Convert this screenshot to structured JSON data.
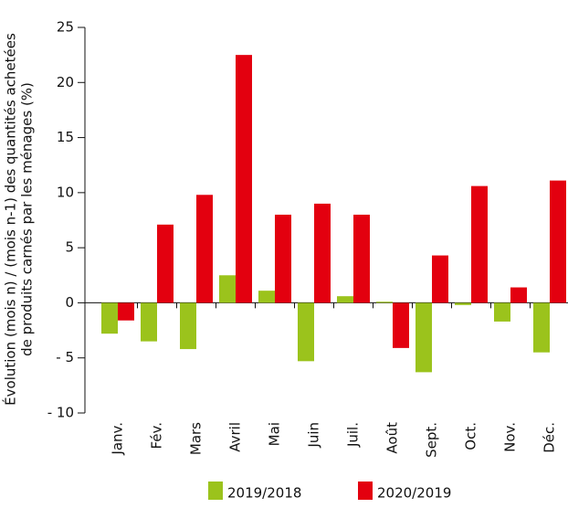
{
  "chart_data": {
    "type": "bar",
    "ylabel": [
      "Évolution (mois n) / (mois n-1) des quantités achetées",
      "de produits carnés par les ménages (%)"
    ],
    "categories": [
      "Janv.",
      "Fév.",
      "Mars",
      "Avril",
      "Mai",
      "Juin",
      "Juil.",
      "Août",
      "Sept.",
      "Oct.",
      "Nov.",
      "Déc."
    ],
    "series": [
      {
        "name": "2019/2018",
        "color": "#9bc31c",
        "values": [
          -2.8,
          -3.5,
          -4.2,
          2.5,
          1.1,
          -5.3,
          0.6,
          0.1,
          -6.3,
          -0.2,
          -1.7,
          -4.5
        ]
      },
      {
        "name": "2020/2019",
        "color": "#e3000f",
        "values": [
          -1.6,
          7.1,
          9.8,
          22.5,
          8.0,
          9.0,
          8.0,
          -4.1,
          4.3,
          10.6,
          1.4,
          11.1
        ]
      }
    ],
    "ylim": [
      -10,
      25
    ],
    "yticks": [
      {
        "value": -10,
        "label": "- 10"
      },
      {
        "value": -5,
        "label": "- 5"
      },
      0,
      5,
      10,
      15,
      20,
      25
    ],
    "legend": "bottom"
  }
}
